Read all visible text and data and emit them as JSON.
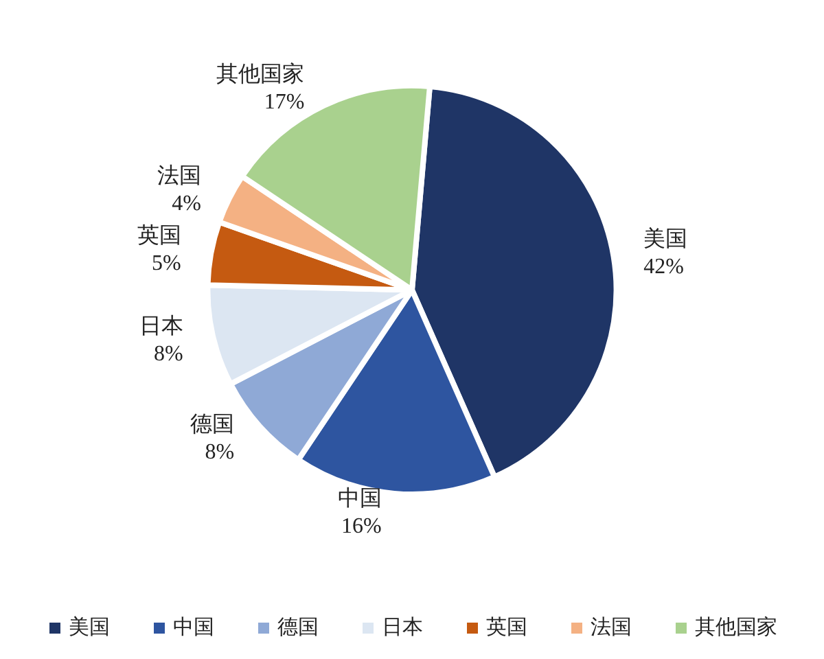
{
  "chart_data": {
    "type": "pie",
    "categories": [
      "美国",
      "中国",
      "德国",
      "日本",
      "英国",
      "法国",
      "其他国家"
    ],
    "values": [
      42,
      16,
      8,
      8,
      5,
      4,
      17
    ],
    "colors": [
      "#1f3566",
      "#2e55a0",
      "#8fa9d6",
      "#dce6f2",
      "#c55a11",
      "#f4b183",
      "#a9d18e"
    ],
    "value_labels": [
      "42%",
      "16%",
      "8%",
      "8%",
      "5%",
      "4%",
      "17%"
    ],
    "legend": "bottom"
  }
}
